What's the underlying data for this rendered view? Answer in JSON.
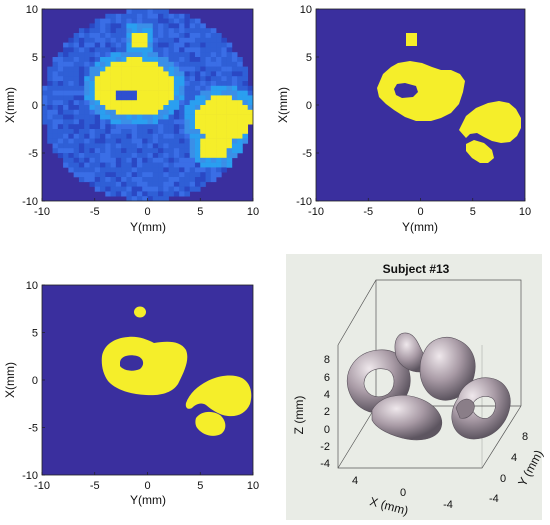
{
  "chart_data": [
    {
      "type": "heatmap",
      "panel": "top-left",
      "xlabel": "Y(mm)",
      "ylabel": "X(mm)",
      "xlim": [
        -10,
        10
      ],
      "ylim": [
        -10,
        10
      ],
      "xticks": [
        "-10",
        "-5",
        "0",
        "5",
        "10"
      ],
      "yticks": [
        "10",
        "5",
        "0",
        "-5",
        "-10"
      ],
      "background_color": "#3a2f9e",
      "disc_color": "#2f5fd6",
      "disc_radius_mm": 10,
      "regions": [
        {
          "shape": "ellipse",
          "cx": -1.2,
          "cy": 1.8,
          "rx": 3.8,
          "ry": 3.0,
          "value": "high"
        },
        {
          "shape": "ellipse",
          "cx": -1.8,
          "cy": 1.0,
          "rx": 1.1,
          "ry": 0.6,
          "value": "low"
        },
        {
          "shape": "rect",
          "x0": -1.3,
          "x1": -0.2,
          "y0": 6.2,
          "y1": 7.6,
          "value": "high"
        },
        {
          "shape": "ellipse",
          "cx": 7.2,
          "cy": -1.5,
          "rx": 2.8,
          "ry": 2.4,
          "value": "high"
        },
        {
          "shape": "ellipse",
          "cx": 6.3,
          "cy": -4.3,
          "rx": 1.5,
          "ry": 1.4,
          "value": "high"
        }
      ],
      "colors": {
        "low": "#2f4fd0",
        "mid": "#2a9ff0",
        "high": "#f5ee2a"
      }
    },
    {
      "type": "heatmap",
      "panel": "top-right",
      "xlabel": "Y(mm)",
      "ylabel": "X(mm)",
      "xlim": [
        -10,
        10
      ],
      "ylim": [
        -10,
        10
      ],
      "xticks": [
        "-10",
        "-5",
        "0",
        "5",
        "10"
      ],
      "yticks": [
        "10",
        "5",
        "0",
        "-5",
        "-10"
      ],
      "background_color": "#3a2f9e",
      "foreground_color": "#f5ee2a"
    },
    {
      "type": "heatmap",
      "panel": "bottom-left",
      "xlabel": "Y(mm)",
      "ylabel": "X(mm)",
      "xlim": [
        -10,
        10
      ],
      "ylim": [
        -10,
        10
      ],
      "xticks": [
        "-10",
        "-5",
        "0",
        "5",
        "10"
      ],
      "yticks": [
        "10",
        "5",
        "0",
        "-5",
        "-10"
      ],
      "background_color": "#3a2f9e",
      "foreground_color": "#f5ee2a"
    },
    {
      "type": "surface3d",
      "panel": "bottom-right",
      "title": "Subject #13",
      "xlabel": "X (mm)",
      "ylabel": "Y (mm)",
      "zlabel": "Z (mm)",
      "zticks": [
        "8",
        "6",
        "4",
        "2",
        "0",
        "-2",
        "-4"
      ],
      "xticks": [
        "4",
        "0",
        "-4"
      ],
      "yticks": [
        "8",
        "4",
        "0",
        "-4"
      ],
      "panel_background": "#e9ece6",
      "surface_color": "#9c8e98"
    }
  ]
}
